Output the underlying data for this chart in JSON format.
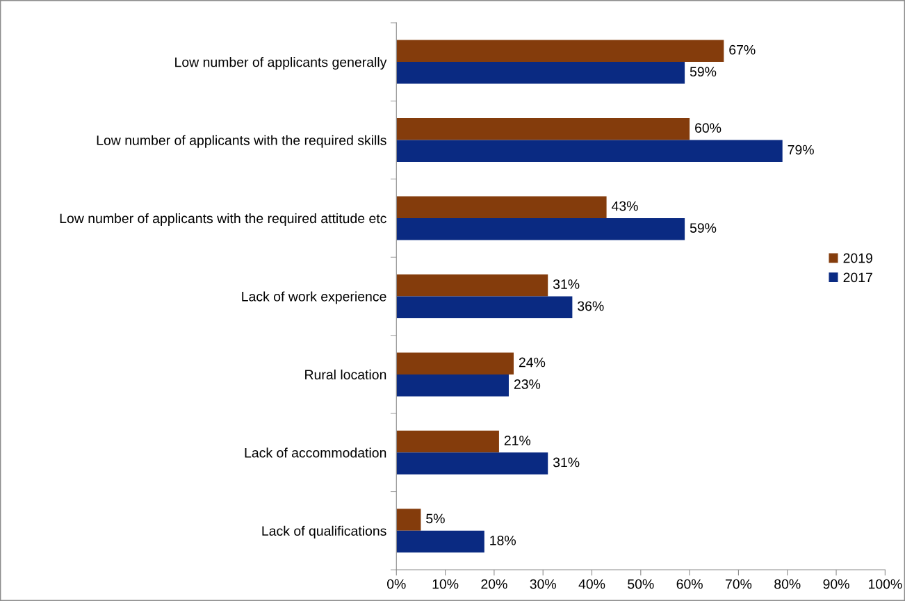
{
  "chart_data": {
    "type": "bar",
    "orientation": "horizontal",
    "categories": [
      "Low number of applicants generally",
      "Low number of applicants with the required skills",
      "Low number of applicants with the required attitude etc",
      "Lack of work experience",
      "Rural location",
      "Lack of accommodation",
      "Lack of qualifications"
    ],
    "series": [
      {
        "name": "2019",
        "color": "#843c0c",
        "values": [
          67,
          60,
          43,
          31,
          24,
          21,
          5
        ],
        "value_labels": [
          "67%",
          "60%",
          "43%",
          "31%",
          "24%",
          "21%",
          "5%"
        ]
      },
      {
        "name": "2017",
        "color": "#0a2a82",
        "values": [
          59,
          79,
          59,
          36,
          23,
          31,
          18
        ],
        "value_labels": [
          "59%",
          "79%",
          "59%",
          "36%",
          "23%",
          "31%",
          "18%"
        ]
      }
    ],
    "xlim": [
      0,
      100
    ],
    "xticks": [
      {
        "value": 0,
        "label": "0%"
      },
      {
        "value": 10,
        "label": "10%"
      },
      {
        "value": 20,
        "label": "20%"
      },
      {
        "value": 30,
        "label": "30%"
      },
      {
        "value": 40,
        "label": "40%"
      },
      {
        "value": 50,
        "label": "50%"
      },
      {
        "value": 60,
        "label": "60%"
      },
      {
        "value": 70,
        "label": "70%"
      },
      {
        "value": 80,
        "label": "80%"
      },
      {
        "value": 90,
        "label": "90%"
      },
      {
        "value": 100,
        "label": "100%"
      }
    ],
    "grid": false,
    "legend": "right"
  }
}
